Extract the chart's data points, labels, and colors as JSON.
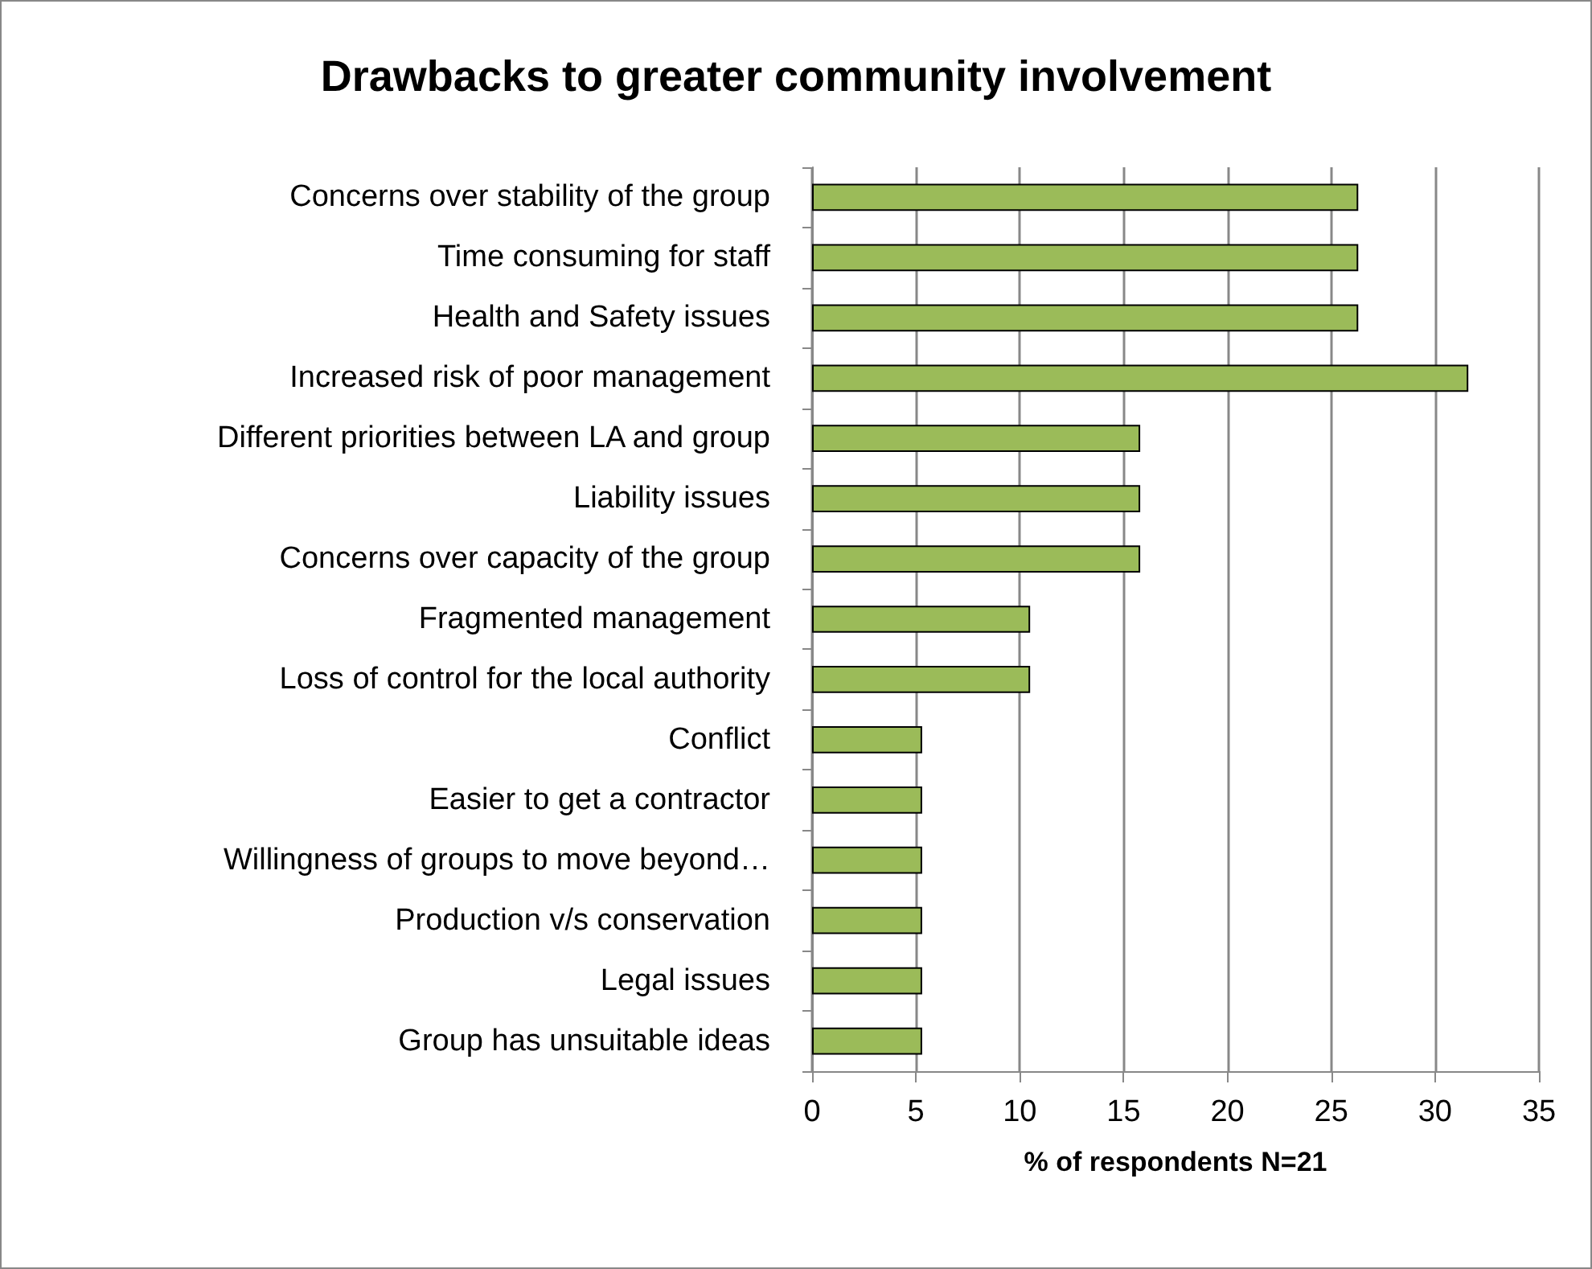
{
  "chart_data": {
    "type": "bar",
    "orientation": "horizontal",
    "title": "Drawbacks to greater community involvement",
    "xlabel": "% of respondents N=21",
    "categories": [
      "Concerns over stability of the group",
      "Time consuming for staff",
      "Health and Safety issues",
      "Increased risk of poor management",
      "Different priorities between LA and group",
      "Liability issues",
      "Concerns over capacity of the group",
      "Fragmented management",
      "Loss of control for the local authority",
      "Conflict",
      "Easier to get a contractor",
      "Willingness of groups to move beyond…",
      "Production v/s conservation",
      "Legal issues",
      "Group has unsuitable ideas"
    ],
    "values": [
      26.3,
      26.3,
      26.3,
      31.6,
      15.8,
      15.8,
      15.8,
      10.5,
      10.5,
      5.3,
      5.3,
      5.3,
      5.3,
      5.3,
      5.3
    ],
    "color": "#9bbb59",
    "xlim": [
      0,
      35
    ],
    "xticks": [
      0,
      5,
      10,
      15,
      20,
      25,
      30,
      35
    ],
    "grid": "x"
  }
}
